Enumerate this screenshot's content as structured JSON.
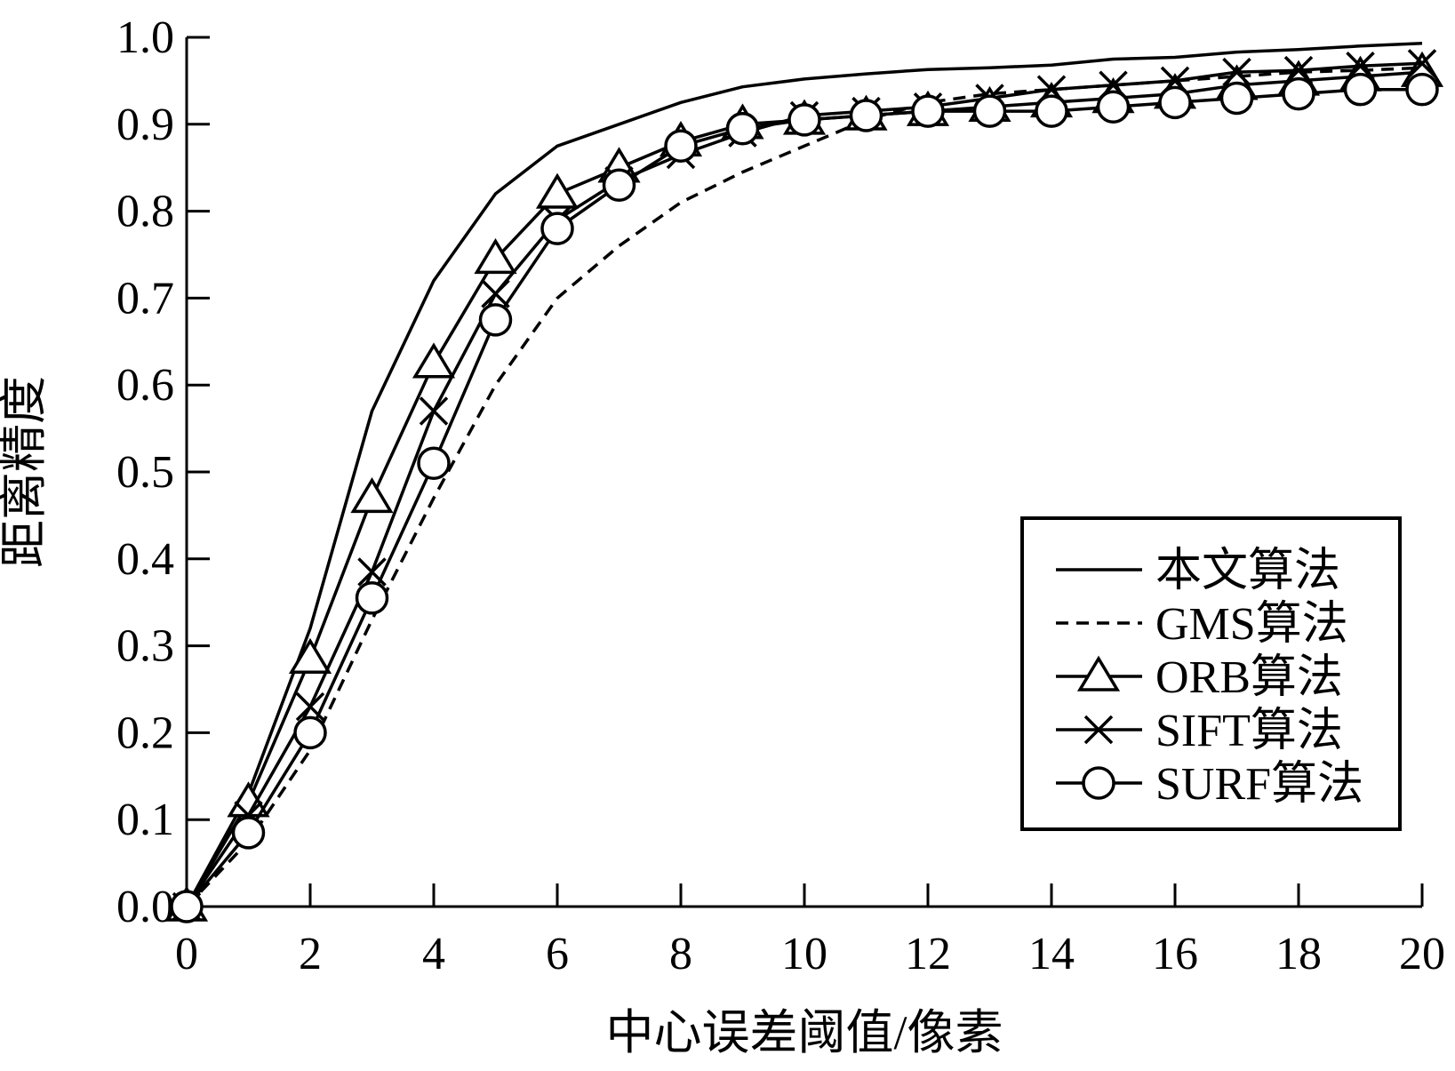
{
  "chart_data": {
    "type": "line",
    "title": "",
    "xlabel": "中心误差阈值/像素",
    "ylabel": "距离精度",
    "xlim": [
      0,
      20
    ],
    "ylim": [
      0,
      1
    ],
    "xticks": [
      0,
      2,
      4,
      6,
      8,
      10,
      12,
      14,
      16,
      18,
      20
    ],
    "xtick_labels": [
      "0",
      "2",
      "4",
      "6",
      "8",
      "10",
      "12",
      "14",
      "16",
      "18",
      "20"
    ],
    "yticks": [
      0,
      0.1,
      0.2,
      0.3,
      0.4,
      0.5,
      0.6,
      0.7,
      0.8,
      0.9,
      1.0
    ],
    "ytick_labels": [
      "0.0",
      "0.1",
      "0.2",
      "0.3",
      "0.4",
      "0.5",
      "0.6",
      "0.7",
      "0.8",
      "0.9",
      "1.0"
    ],
    "grid": false,
    "legend_position": "lower-right",
    "x": [
      0,
      1,
      2,
      3,
      4,
      5,
      6,
      7,
      8,
      9,
      10,
      11,
      12,
      13,
      14,
      15,
      16,
      17,
      18,
      19,
      20
    ],
    "series": [
      {
        "name": "本文算法",
        "line": "solid",
        "marker": "none",
        "values": [
          0.0,
          0.13,
          0.32,
          0.57,
          0.72,
          0.82,
          0.875,
          0.9,
          0.925,
          0.943,
          0.952,
          0.958,
          0.963,
          0.965,
          0.968,
          0.975,
          0.977,
          0.983,
          0.986,
          0.99,
          0.993
        ]
      },
      {
        "name": "GMS算法",
        "line": "dashed",
        "marker": "none",
        "values": [
          0.0,
          0.075,
          0.18,
          0.33,
          0.47,
          0.6,
          0.7,
          0.76,
          0.81,
          0.845,
          0.875,
          0.905,
          0.925,
          0.935,
          0.94,
          0.945,
          0.95,
          0.955,
          0.96,
          0.962,
          0.965
        ]
      },
      {
        "name": "ORB算法",
        "line": "solid",
        "marker": "triangle",
        "values": [
          0.0,
          0.12,
          0.285,
          0.47,
          0.625,
          0.745,
          0.82,
          0.85,
          0.88,
          0.9,
          0.905,
          0.91,
          0.915,
          0.92,
          0.925,
          0.93,
          0.935,
          0.945,
          0.95,
          0.955,
          0.96
        ]
      },
      {
        "name": "SIFT算法",
        "line": "solid",
        "marker": "x",
        "values": [
          0.0,
          0.105,
          0.23,
          0.385,
          0.57,
          0.705,
          0.79,
          0.835,
          0.865,
          0.89,
          0.91,
          0.915,
          0.92,
          0.93,
          0.94,
          0.945,
          0.95,
          0.96,
          0.962,
          0.967,
          0.97
        ]
      },
      {
        "name": "SURF算法",
        "line": "solid",
        "marker": "circle",
        "values": [
          0.0,
          0.085,
          0.2,
          0.355,
          0.51,
          0.675,
          0.78,
          0.83,
          0.875,
          0.895,
          0.905,
          0.91,
          0.915,
          0.915,
          0.915,
          0.92,
          0.925,
          0.93,
          0.935,
          0.94,
          0.94
        ]
      }
    ]
  }
}
